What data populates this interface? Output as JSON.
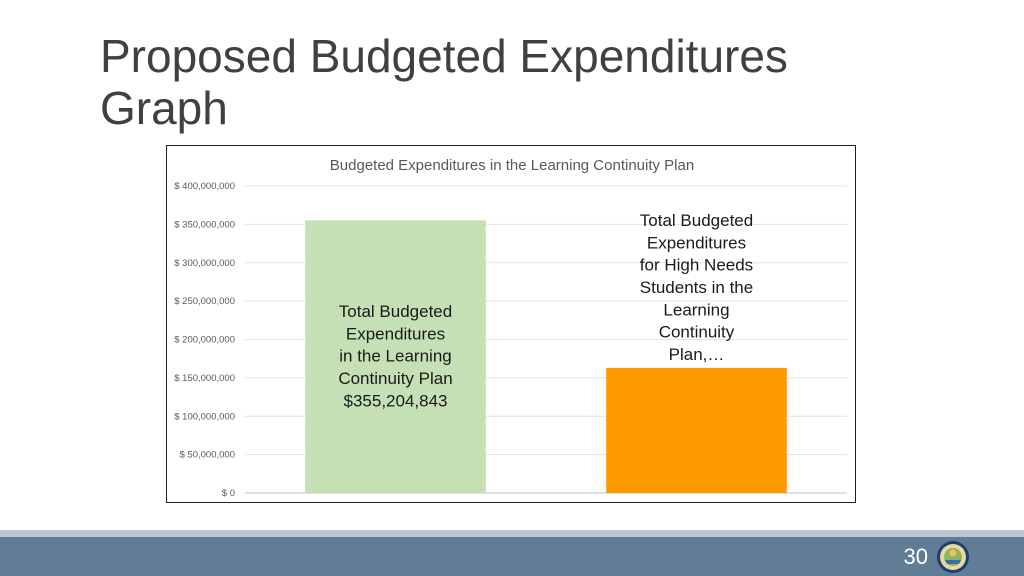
{
  "slide": {
    "title_line1": "Proposed Budgeted Expenditures",
    "title_line2": "Graph",
    "page_number": "30"
  },
  "chart_data": {
    "type": "bar",
    "title": "Budgeted Expenditures in the Learning Continuity Plan",
    "categories": [
      "Total Budgeted Expenditures in the Learning Continuity Plan",
      "Total Budgeted Expenditures for High Needs Students in the Learning Continuity Plan"
    ],
    "values": [
      355204843,
      163000000
    ],
    "colors": [
      "#c5e0b4",
      "#ff9900"
    ],
    "data_labels": [
      [
        "Total Budgeted",
        "Expenditures",
        "in the Learning",
        "Continuity Plan",
        "$355,204,843"
      ],
      [
        "Total Budgeted",
        "Expenditures",
        "for High Needs",
        "Students in the",
        "Learning",
        "Continuity",
        "Plan,…"
      ]
    ],
    "ylim": [
      0,
      400000000
    ],
    "y_ticks": [
      0,
      50000000,
      100000000,
      150000000,
      200000000,
      250000000,
      300000000,
      350000000,
      400000000
    ],
    "y_tick_labels": [
      "$ 0",
      "$ 50,000,000",
      "$ 100,000,000",
      "$ 150,000,000",
      "$ 200,000,000",
      "$ 250,000,000",
      "$ 300,000,000",
      "$ 350,000,000",
      "$ 400,000,000"
    ],
    "grid": true,
    "legend": "none"
  }
}
